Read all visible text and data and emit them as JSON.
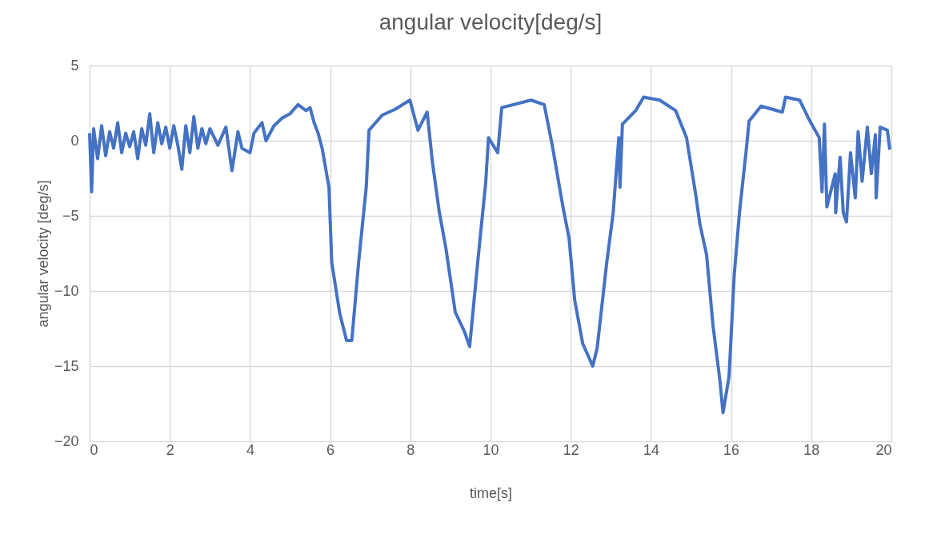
{
  "chart_data": {
    "type": "line",
    "title": "angular velocity[deg/s]",
    "xlabel": "time[s]",
    "ylabel": "angular velocity [deg/s]",
    "x": [
      0,
      0.05,
      0.1,
      0.2,
      0.3,
      0.4,
      0.5,
      0.6,
      0.7,
      0.8,
      0.9,
      1.0,
      1.1,
      1.2,
      1.3,
      1.4,
      1.5,
      1.6,
      1.7,
      1.8,
      1.9,
      2.0,
      2.1,
      2.2,
      2.3,
      2.4,
      2.5,
      2.6,
      2.7,
      2.8,
      2.9,
      3.0,
      3.2,
      3.4,
      3.55,
      3.7,
      3.8,
      4.0,
      4.1,
      4.3,
      4.4,
      4.6,
      4.8,
      5.0,
      5.2,
      5.4,
      5.5,
      5.6,
      5.7,
      5.8,
      5.97,
      6.04,
      6.24,
      6.41,
      6.54,
      6.71,
      6.9,
      6.97,
      7.3,
      7.63,
      7.99,
      8.19,
      8.42,
      8.55,
      8.72,
      8.89,
      9.12,
      9.35,
      9.48,
      9.68,
      9.88,
      9.95,
      10.18,
      10.28,
      11.01,
      11.34,
      11.54,
      11.8,
      11.96,
      12.1,
      12.3,
      12.55,
      12.66,
      12.9,
      13.06,
      13.2,
      13.23,
      13.29,
      13.62,
      13.82,
      14.22,
      14.62,
      14.89,
      15.12,
      15.22,
      15.39,
      15.55,
      15.72,
      15.8,
      15.95,
      16.08,
      16.21,
      16.38,
      16.45,
      16.75,
      17.28,
      17.36,
      17.71,
      17.95,
      18.2,
      18.27,
      18.33,
      18.39,
      18.6,
      18.61,
      18.72,
      18.8,
      18.88,
      18.98,
      19.1,
      19.17,
      19.27,
      19.4,
      19.5,
      19.6,
      19.62,
      19.72,
      19.9,
      19.96
    ],
    "series": [
      {
        "color": "#4472c4",
        "values": [
          0.5,
          -3.4,
          0.8,
          -1.2,
          1.0,
          -1.0,
          0.6,
          -0.5,
          1.2,
          -0.8,
          0.5,
          -0.4,
          0.6,
          -1.2,
          0.8,
          -0.3,
          1.8,
          -0.8,
          1.2,
          -0.2,
          0.9,
          -0.5,
          1.0,
          -0.3,
          -1.9,
          1.0,
          -0.8,
          1.6,
          -0.5,
          0.8,
          -0.2,
          0.8,
          -0.3,
          0.9,
          -2.0,
          0.6,
          -0.5,
          -0.8,
          0.5,
          1.2,
          0.0,
          1.0,
          1.5,
          1.8,
          2.4,
          2.0,
          2.2,
          1.2,
          0.5,
          -0.5,
          -3.1,
          -8.1,
          -11.5,
          -13.3,
          -13.3,
          -8.1,
          -3.1,
          0.7,
          1.7,
          2.1,
          2.7,
          0.7,
          1.9,
          -1.4,
          -4.7,
          -7.2,
          -11.4,
          -12.7,
          -13.7,
          -8.1,
          -2.8,
          0.2,
          -0.8,
          2.2,
          2.7,
          2.4,
          -0.3,
          -4.3,
          -6.5,
          -10.6,
          -13.5,
          -15.0,
          -13.8,
          -8.1,
          -4.8,
          0.2,
          -3.1,
          1.1,
          2.0,
          2.9,
          2.7,
          2.0,
          0.2,
          -3.6,
          -5.5,
          -7.6,
          -12.3,
          -15.9,
          -18.1,
          -15.7,
          -8.9,
          -4.8,
          -0.6,
          1.3,
          2.3,
          1.9,
          2.9,
          2.7,
          1.4,
          0.2,
          -3.4,
          1.1,
          -4.4,
          -2.2,
          -4.8,
          -1.1,
          -4.8,
          -5.4,
          -0.8,
          -3.8,
          0.6,
          -2.7,
          0.9,
          -2.2,
          0.4,
          -3.8,
          0.9,
          0.7,
          -0.6
        ]
      }
    ],
    "xlim": [
      0,
      20
    ],
    "xticks": [
      0,
      2,
      4,
      6,
      8,
      10,
      12,
      14,
      16,
      18,
      20
    ],
    "ylim": [
      -20,
      5
    ],
    "yticks": [
      -20,
      -15,
      -10,
      -5,
      0,
      5
    ],
    "grid": true,
    "line_style": "solid",
    "marker": "none"
  }
}
